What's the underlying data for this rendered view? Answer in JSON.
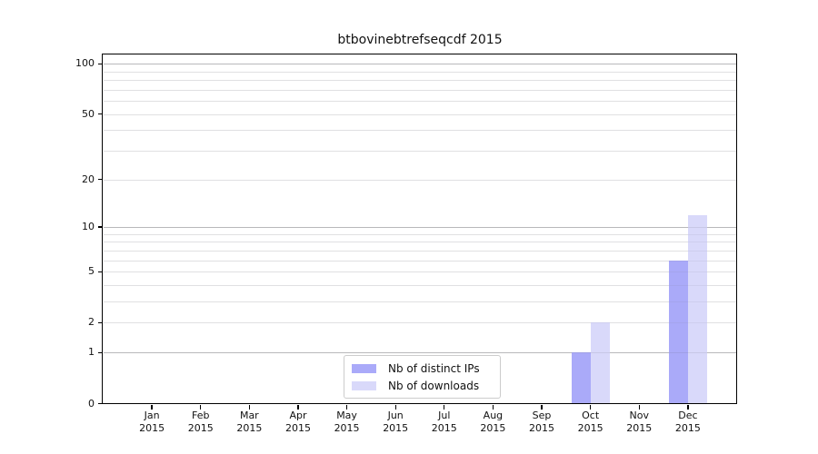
{
  "chart_data": {
    "type": "bar",
    "title": "btbovinebtrefseqcdf 2015",
    "categories": [
      "Jan",
      "Feb",
      "Mar",
      "Apr",
      "May",
      "Jun",
      "Jul",
      "Aug",
      "Sep",
      "Oct",
      "Nov",
      "Dec"
    ],
    "category_year": "2015",
    "series": [
      {
        "name": "Nb of distinct IPs",
        "color": "#aaaaf9",
        "values": [
          0,
          0,
          0,
          0,
          0,
          0,
          0,
          0,
          0,
          1,
          0,
          6
        ]
      },
      {
        "name": "Nb of downloads",
        "color": "#d9d9fa",
        "values": [
          0,
          0,
          0,
          0,
          0,
          0,
          0,
          0,
          0,
          2,
          0,
          12
        ]
      }
    ],
    "y_ticks": [
      0,
      1,
      2,
      5,
      10,
      20,
      50,
      100
    ],
    "y_minor_ticks": [
      2,
      3,
      4,
      5,
      6,
      7,
      8,
      9,
      20,
      30,
      40,
      50,
      60,
      70,
      80,
      90
    ],
    "y_major_gridlines": [
      1,
      10,
      100
    ],
    "ylim": [
      0,
      113
    ],
    "scale": "log10(1+y)",
    "xlabel": "",
    "ylabel": "",
    "grid": true,
    "legend_position": "inside lower-center-left",
    "background_color": "#ffffff",
    "spine_color": "#000000"
  }
}
